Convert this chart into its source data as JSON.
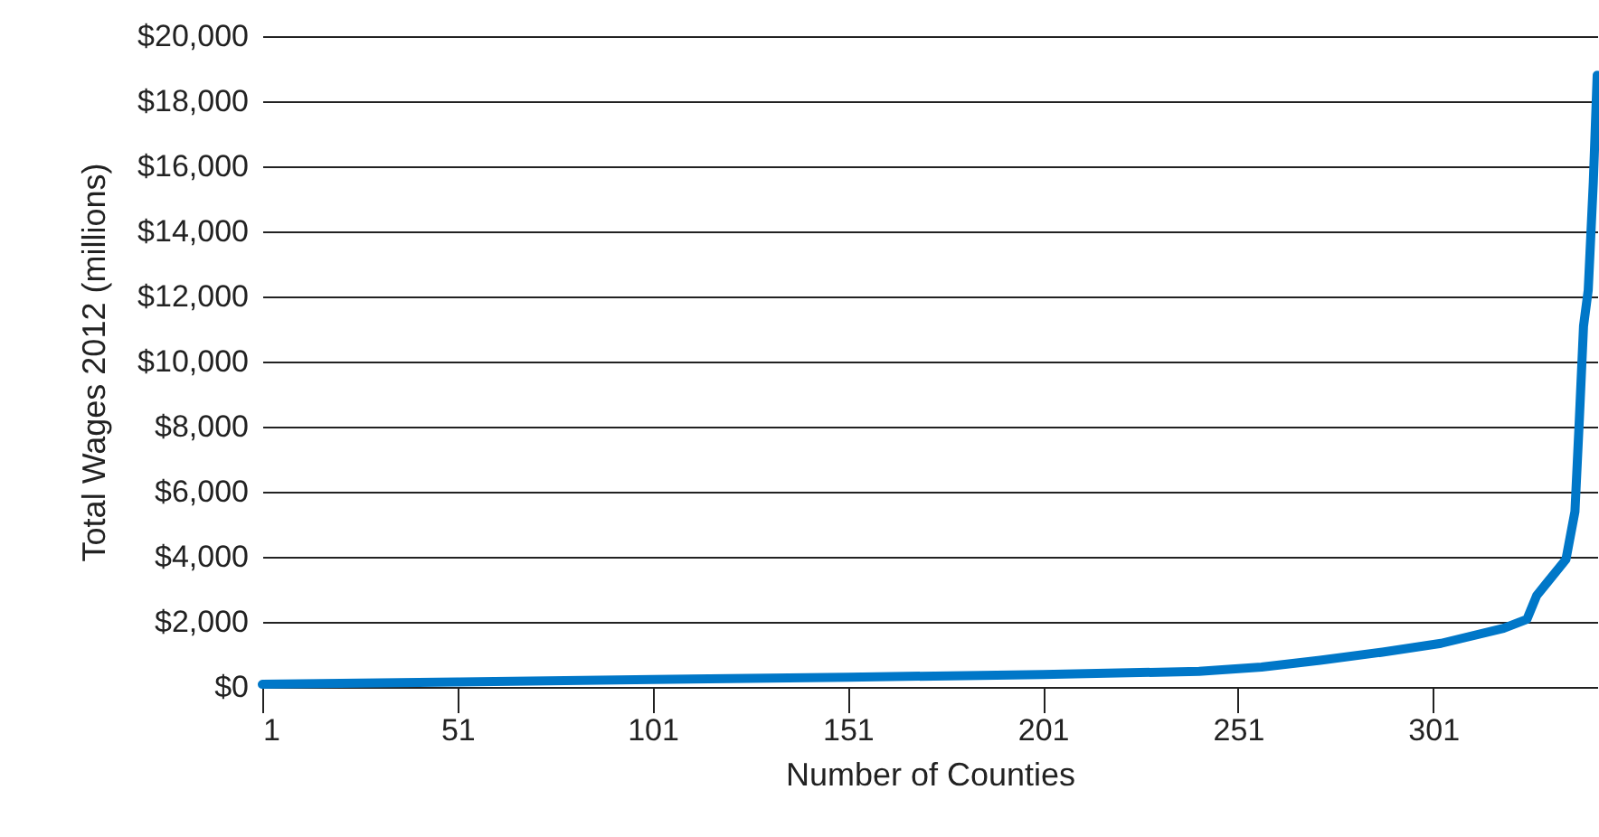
{
  "chart_data": {
    "type": "line",
    "xlabel": "Number of Counties",
    "ylabel": "Total Wages 2012 (millions)",
    "xlim": [
      1,
      343
    ],
    "xticks": [
      1,
      51,
      101,
      151,
      201,
      251,
      301
    ],
    "ylim": [
      0,
      20000
    ],
    "yticks": [
      {
        "value": 0,
        "label": "$0"
      },
      {
        "value": 2000,
        "label": "$2,000"
      },
      {
        "value": 4000,
        "label": "$4,000"
      },
      {
        "value": 6000,
        "label": "$6,000"
      },
      {
        "value": 8000,
        "label": "$8,000"
      },
      {
        "value": 10000,
        "label": "$10,000"
      },
      {
        "value": 12000,
        "label": "$12,000"
      },
      {
        "value": 14000,
        "label": "$14,000"
      },
      {
        "value": 16000,
        "label": "$16,000"
      },
      {
        "value": 18000,
        "label": "$18,000"
      },
      {
        "value": 20000,
        "label": "$20,000"
      }
    ],
    "grid": "y",
    "line_style": "solid",
    "series": [
      {
        "color": "#0077c8",
        "x": [
          1,
          51,
          101,
          151,
          201,
          241,
          257,
          272,
          288,
          303,
          319,
          325,
          327.5,
          330,
          335,
          337.3,
          338.4,
          339.5,
          340.7,
          342,
          343
        ],
        "values": [
          80,
          150,
          230,
          300,
          380,
          480,
          610,
          820,
          1070,
          1340,
          1800,
          2080,
          2810,
          3180,
          3920,
          5390,
          8150,
          11090,
          12190,
          15500,
          18800
        ]
      }
    ]
  }
}
